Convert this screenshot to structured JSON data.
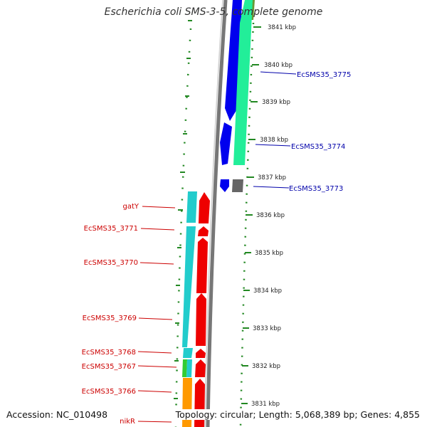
{
  "title": "Escherichia coli SMS-3-5, complete genome",
  "accession": "Accession: NC_010498",
  "summary": "Topology: circular; Length: 5,068,389 bp; Genes: 4,855",
  "colors": {
    "outer_strand_blue": "#0000ee",
    "outer_strand_green": "#22ee99",
    "inner_cyan": "#22cccc",
    "inner_red": "#ee0000",
    "orange": "#ff9900",
    "green": "#33cc33",
    "grey": "#666666",
    "right_label": "#0000aa",
    "left_label": "#cc0000",
    "tick": "#228822"
  },
  "kbp_ticks": [
    {
      "label": "3841 kbp"
    },
    {
      "label": "3840 kbp"
    },
    {
      "label": "3839 kbp"
    },
    {
      "label": "3838 kbp"
    },
    {
      "label": "3837 kbp"
    },
    {
      "label": "3836 kbp"
    },
    {
      "label": "3835 kbp"
    },
    {
      "label": "3834 kbp"
    },
    {
      "label": "3833 kbp"
    },
    {
      "label": "3832 kbp"
    },
    {
      "label": "3831 kbp"
    }
  ],
  "right_labels": [
    {
      "label": "EcSMS35_3775"
    },
    {
      "label": "EcSMS35_3774"
    },
    {
      "label": "EcSMS35_3773"
    }
  ],
  "left_labels": [
    {
      "label": "gatY"
    },
    {
      "label": "EcSMS35_3771"
    },
    {
      "label": "EcSMS35_3770"
    },
    {
      "label": "EcSMS35_3769"
    },
    {
      "label": "EcSMS35_3768"
    },
    {
      "label": "EcSMS35_3767"
    },
    {
      "label": "EcSMS35_3766"
    },
    {
      "label": "nikR"
    }
  ]
}
